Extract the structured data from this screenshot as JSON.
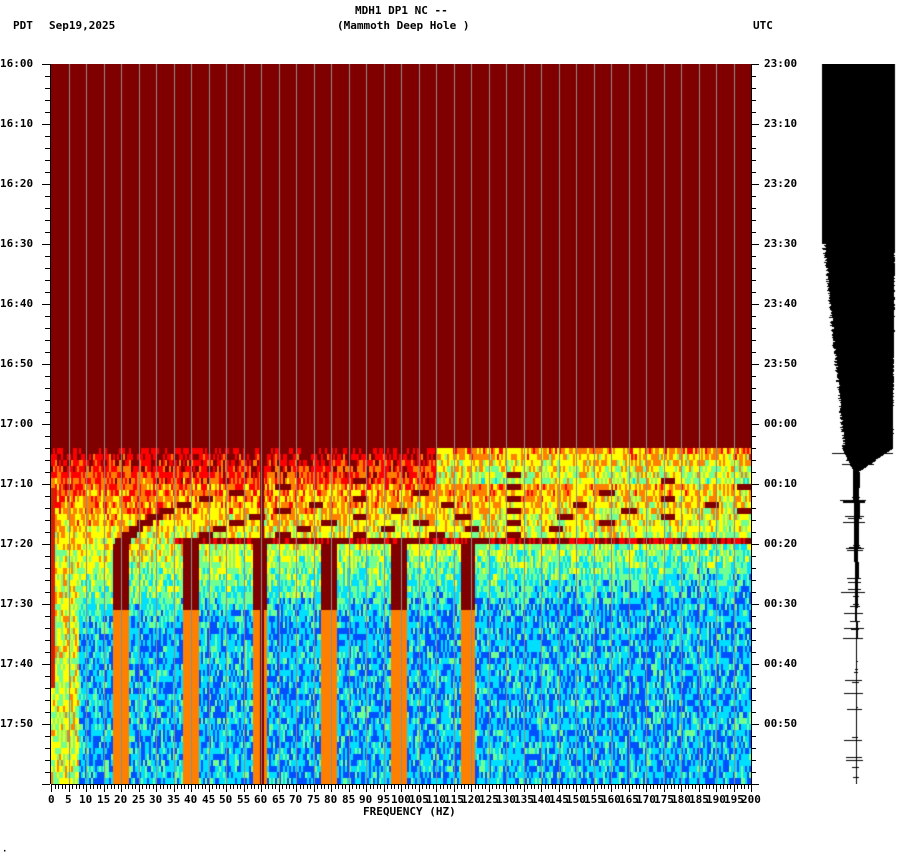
{
  "header": {
    "left_timezone": "PDT",
    "date": "Sep19,2025",
    "title_line1": "MDH1 DP1 NC --",
    "title_line2": "(Mammoth Deep Hole )",
    "right_timezone": "UTC"
  },
  "footer_mark": "·",
  "chart_data": {
    "type": "heatmap",
    "title": "MDH1 DP1 NC -- (Mammoth Deep Hole )",
    "subtitle": "Sep19,2025",
    "xlabel": "FREQUENCY (HZ)",
    "ylabel_left": "PDT",
    "ylabel_right": "UTC",
    "xlim": [
      0,
      200
    ],
    "x_ticks": [
      "0",
      "5",
      "10",
      "15",
      "20",
      "25",
      "30",
      "35",
      "40",
      "45",
      "50",
      "55",
      "60",
      "65",
      "70",
      "75",
      "80",
      "85",
      "90",
      "95",
      "100",
      "105",
      "110",
      "115",
      "120",
      "125",
      "130",
      "135",
      "140",
      "145",
      "150",
      "155",
      "160",
      "165",
      "170",
      "175",
      "180",
      "185",
      "190",
      "195",
      "200"
    ],
    "y_ticks_left": [
      "16:00",
      "16:10",
      "16:20",
      "16:30",
      "16:40",
      "16:50",
      "17:00",
      "17:10",
      "17:20",
      "17:30",
      "17:40",
      "17:50"
    ],
    "y_ticks_right": [
      "23:00",
      "23:10",
      "23:20",
      "23:30",
      "23:40",
      "23:50",
      "00:00",
      "00:10",
      "00:20",
      "00:30",
      "00:40",
      "00:50"
    ],
    "time_range_pdt": [
      "16:00",
      "18:00"
    ],
    "colormap": [
      "#00008f",
      "#0050ff",
      "#00dfff",
      "#70ff90",
      "#ffff00",
      "#ff8000",
      "#ff0000",
      "#800000"
    ],
    "saturated_until_pdt": "17:05",
    "persistent_lines_hz": [
      10,
      20,
      60,
      120,
      180
    ],
    "features": [
      {
        "label": "saturated (clipped) signal",
        "time_pdt": [
          "16:00",
          "17:04"
        ],
        "color": "#800000"
      },
      {
        "label": "descending frequency tones",
        "start_time_pdt": "17:07",
        "end_time_pdt": "17:27"
      },
      {
        "label": "strong 60 Hz line",
        "freq_hz": 60
      },
      {
        "label": "horizontal band",
        "time_pdt": "17:19",
        "freq_range_hz": [
          40,
          200
        ]
      }
    ],
    "grid": true,
    "grid_spacing_hz": 5,
    "seismogram": {
      "position": "right",
      "color": "#000000",
      "saturated_until_pdt": "17:05"
    }
  }
}
